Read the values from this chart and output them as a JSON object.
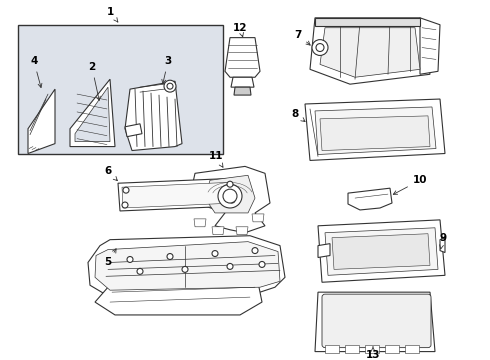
{
  "background_color": "#ffffff",
  "line_color": "#333333",
  "label_color": "#000000",
  "fig_width": 4.9,
  "fig_height": 3.6,
  "dpi": 100
}
